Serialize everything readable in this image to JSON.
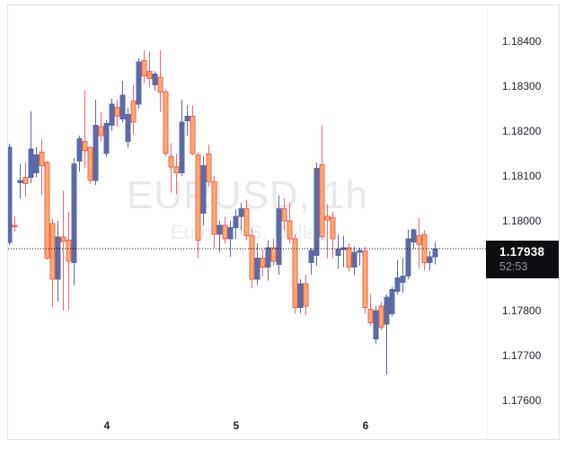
{
  "chart_data": {
    "type": "candlestick",
    "title": "EURUSD, 1h",
    "subtitle": "Euro / U.S. Dollar",
    "symbol": "EURUSD",
    "interval": "1h",
    "last_price": "1.17938",
    "countdown": "52:53",
    "ylim": [
      1.1751,
      1.1848
    ],
    "grid": false,
    "y_ticks": [
      "1.18400",
      "1.18300",
      "1.18200",
      "1.18100",
      "1.18000",
      "1.17800",
      "1.17700",
      "1.17600"
    ],
    "y_tick_prices": [
      1.184,
      1.183,
      1.182,
      1.181,
      1.18,
      1.178,
      1.177,
      1.176
    ],
    "x_ticks": [
      {
        "label": "4",
        "candle_index": 18
      },
      {
        "label": "5",
        "candle_index": 42
      },
      {
        "label": "6",
        "candle_index": 66
      }
    ],
    "colors": {
      "up_body": "#5c6ba6",
      "up_wick": "#5c6ba6",
      "down_body_fill": "#ffab66",
      "down_body_border": "#f25f63",
      "down_wick": "#f2666e",
      "axis_text": "#20242e",
      "last_price_line": "#000000",
      "last_price_label_bg": "#0d0e11",
      "countdown_text": "#9196a1",
      "watermark": "#e7e9ed",
      "background": "#ffffff",
      "frame_border": "#e2e4e8"
    },
    "candles": [
      [
        1.17952,
        1.18172,
        1.17946,
        1.18164
      ],
      [
        1.1799,
        1.1801,
        1.17975,
        1.17988
      ],
      [
        1.18085,
        1.18127,
        1.1805,
        1.1809
      ],
      [
        1.18097,
        1.1813,
        1.18054,
        1.18083
      ],
      [
        1.18097,
        1.18244,
        1.18084,
        1.1816
      ],
      [
        1.18107,
        1.18164,
        1.18097,
        1.18147
      ],
      [
        1.18153,
        1.18183,
        1.18057,
        1.18123
      ],
      [
        1.1813,
        1.18134,
        1.17914,
        1.17917
      ],
      [
        1.17994,
        1.18004,
        1.17808,
        1.1787
      ],
      [
        1.1787,
        1.18,
        1.1782,
        1.17964
      ],
      [
        1.17964,
        1.18067,
        1.178,
        1.17954
      ],
      [
        1.17957,
        1.1802,
        1.17802,
        1.1791
      ],
      [
        1.17907,
        1.1814,
        1.17857,
        1.18127
      ],
      [
        1.18133,
        1.1819,
        1.1811,
        1.18183
      ],
      [
        1.18177,
        1.1829,
        1.18117,
        1.18157
      ],
      [
        1.18163,
        1.18167,
        1.18083,
        1.1809
      ],
      [
        1.1809,
        1.1827,
        1.1808,
        1.18213
      ],
      [
        1.1821,
        1.18243,
        1.18177,
        1.1819
      ],
      [
        1.1815,
        1.18225,
        1.18143,
        1.18217
      ],
      [
        1.18213,
        1.18272,
        1.182,
        1.1826
      ],
      [
        1.18253,
        1.1827,
        1.1821,
        1.18233
      ],
      [
        1.18227,
        1.18312,
        1.1822,
        1.1828
      ],
      [
        1.18177,
        1.18252,
        1.18163,
        1.18237
      ],
      [
        1.18267,
        1.18303,
        1.18193,
        1.1822
      ],
      [
        1.1826,
        1.18362,
        1.1825,
        1.18354
      ],
      [
        1.18357,
        1.1838,
        1.18307,
        1.18323
      ],
      [
        1.18333,
        1.18377,
        1.18297,
        1.18317
      ],
      [
        1.18303,
        1.18333,
        1.1829,
        1.18327
      ],
      [
        1.1832,
        1.1838,
        1.18243,
        1.18287
      ],
      [
        1.18287,
        1.18293,
        1.18143,
        1.1815
      ],
      [
        1.18143,
        1.18173,
        1.18063,
        1.1812
      ],
      [
        1.1812,
        1.1815,
        1.1806,
        1.18107
      ],
      [
        1.18107,
        1.1827,
        1.181,
        1.1822
      ],
      [
        1.18223,
        1.18257,
        1.1819,
        1.18233
      ],
      [
        1.18233,
        1.18257,
        1.18147,
        1.1815
      ],
      [
        1.18147,
        1.18153,
        1.17917,
        1.17957
      ],
      [
        1.18017,
        1.18144,
        1.1799,
        1.18123
      ],
      [
        1.18149,
        1.1817,
        1.18077,
        1.18087
      ],
      [
        1.18087,
        1.181,
        1.1794,
        1.1797
      ],
      [
        1.1797,
        1.18,
        1.1793,
        1.1799
      ],
      [
        1.1799,
        1.1801,
        1.1795,
        1.1796
      ],
      [
        1.1796,
        1.18,
        1.1792,
        1.17985
      ],
      [
        1.17985,
        1.18025,
        1.1796,
        1.1801
      ],
      [
        1.1801,
        1.1804,
        1.1798,
        1.18027
      ],
      [
        1.18027,
        1.18047,
        1.17957,
        1.17967
      ],
      [
        1.17967,
        1.17983,
        1.1785,
        1.1787
      ],
      [
        1.1787,
        1.1795,
        1.17857,
        1.17917
      ],
      [
        1.17917,
        1.17937,
        1.17877,
        1.17897
      ],
      [
        1.17897,
        1.17957,
        1.17867,
        1.1794
      ],
      [
        1.1794,
        1.1796,
        1.179,
        1.1791
      ],
      [
        1.17903,
        1.18057,
        1.1788,
        1.18027
      ],
      [
        1.18027,
        1.1805,
        1.1798,
        1.18
      ],
      [
        1.18,
        1.1804,
        1.1795,
        1.1796
      ],
      [
        1.1796,
        1.1797,
        1.17794,
        1.17807
      ],
      [
        1.17807,
        1.1787,
        1.17795,
        1.1786
      ],
      [
        1.1786,
        1.1788,
        1.1779,
        1.1781
      ],
      [
        1.17907,
        1.1794,
        1.1788,
        1.17934
      ],
      [
        1.17923,
        1.1813,
        1.179,
        1.18117
      ],
      [
        1.18125,
        1.18213,
        1.17957,
        1.17965
      ],
      [
        1.1801,
        1.18037,
        1.17917,
        1.18002
      ],
      [
        1.18007,
        1.1802,
        1.17917,
        1.1796
      ],
      [
        1.17923,
        1.1797,
        1.17893,
        1.17937
      ],
      [
        1.17936,
        1.17967,
        1.17897,
        1.1794
      ],
      [
        1.1794,
        1.1795,
        1.17887,
        1.17897
      ],
      [
        1.17897,
        1.17943,
        1.1788,
        1.1793
      ],
      [
        1.1793,
        1.1794,
        1.179,
        1.17934
      ],
      [
        1.17933,
        1.17942,
        1.17794,
        1.17807
      ],
      [
        1.17803,
        1.17837,
        1.17767,
        1.17773
      ],
      [
        1.17737,
        1.1781,
        1.17727,
        1.178
      ],
      [
        1.1781,
        1.1782,
        1.17757,
        1.17763
      ],
      [
        1.1777,
        1.17837,
        1.17657,
        1.1783
      ],
      [
        1.17793,
        1.17853,
        1.17787,
        1.17847
      ],
      [
        1.17843,
        1.17913,
        1.17837,
        1.17873
      ],
      [
        1.17863,
        1.17917,
        1.1784,
        1.17877
      ],
      [
        1.17877,
        1.1798,
        1.1787,
        1.1796
      ],
      [
        1.17953,
        1.17983,
        1.17937,
        1.1798
      ],
      [
        1.17967,
        1.18007,
        1.17893,
        1.17947
      ],
      [
        1.1797,
        1.1798,
        1.1789,
        1.17907
      ],
      [
        1.17907,
        1.17933,
        1.1789,
        1.1792
      ],
      [
        1.1792,
        1.17953,
        1.17903,
        1.17938
      ]
    ]
  }
}
